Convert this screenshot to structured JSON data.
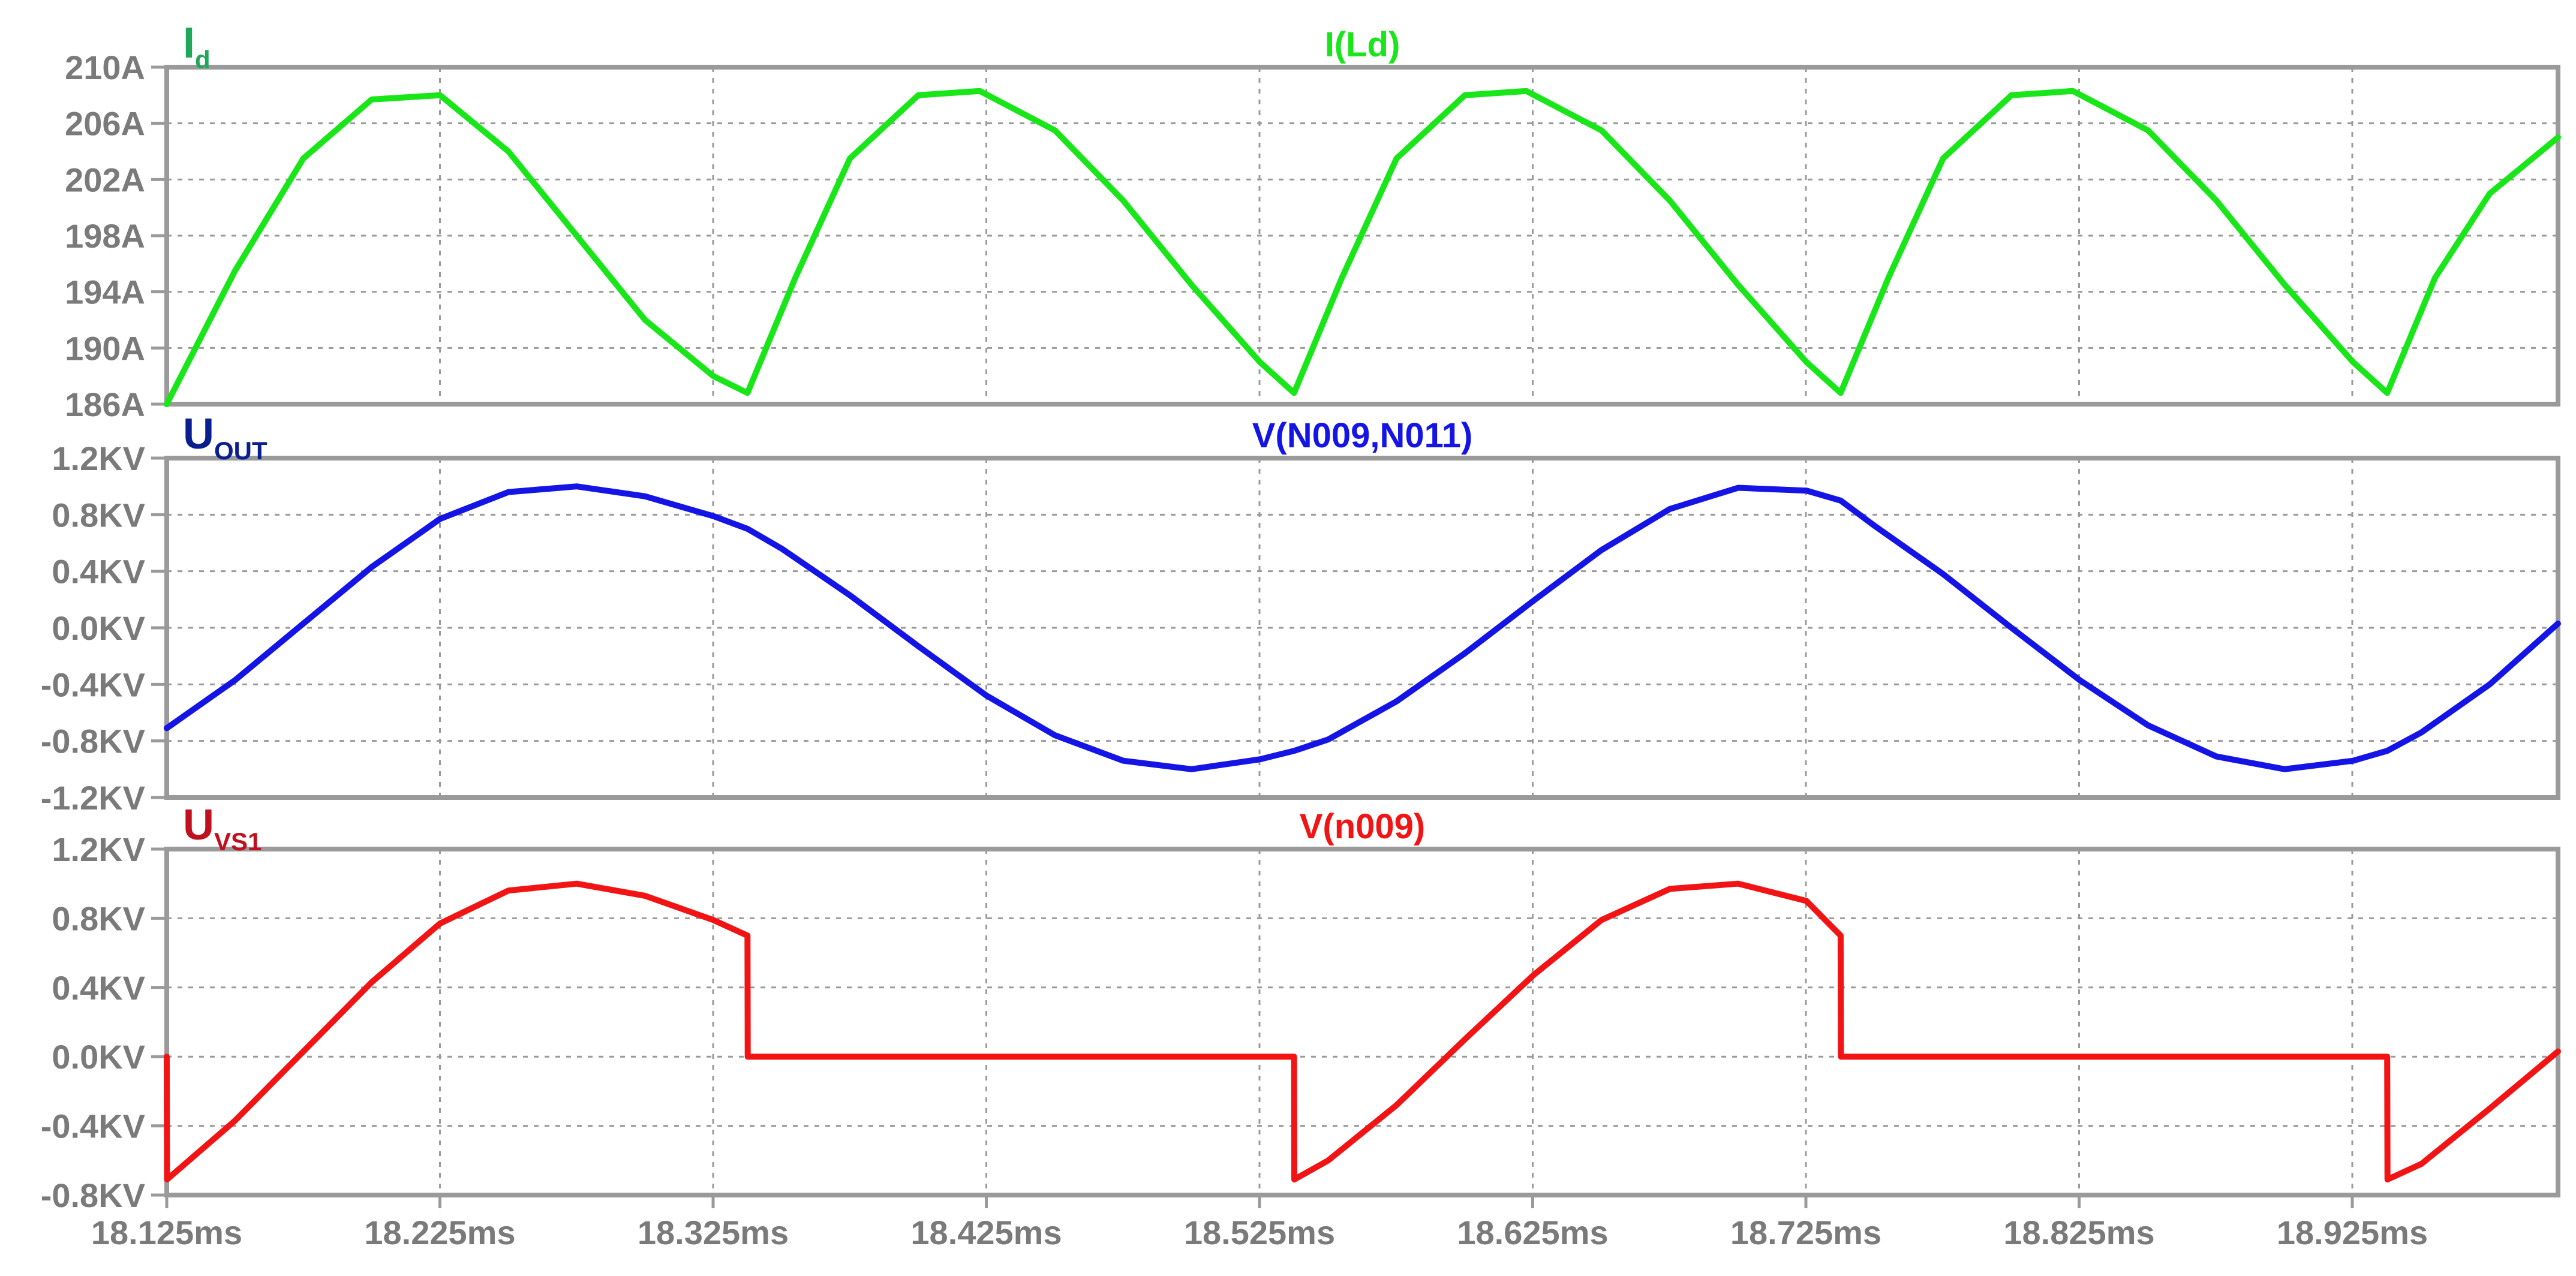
{
  "x_axis": {
    "tick_labels": [
      "18.125ms",
      "18.225ms",
      "18.325ms",
      "18.425ms",
      "18.525ms",
      "18.625ms",
      "18.725ms",
      "18.825ms",
      "18.925ms"
    ],
    "range_ms": [
      18.125,
      19.0
    ],
    "grid": true
  },
  "panes": [
    {
      "id": "id",
      "symbol": "I",
      "subscript": "d",
      "symbol_color": "#1fa85a",
      "trace_name": "I(Ld)",
      "trace_color": "#19e619",
      "y_tick_labels": [
        "210A",
        "206A",
        "202A",
        "198A",
        "194A",
        "190A",
        "186A"
      ]
    },
    {
      "id": "uout",
      "symbol": "U",
      "subscript": "OUT",
      "symbol_color": "#0a1f8f",
      "trace_name": "V(N009,N011)",
      "trace_color": "#1414e6",
      "y_tick_labels": [
        "1.2KV",
        "0.8KV",
        "0.4KV",
        "0.0KV",
        "-0.4KV",
        "-0.8KV",
        "-1.2KV"
      ]
    },
    {
      "id": "uvs1",
      "symbol": "U",
      "subscript": "VS1",
      "symbol_color": "#c0101e",
      "trace_name": "V(n009)",
      "trace_color": "#f21414",
      "y_tick_labels": [
        "1.2KV",
        "0.8KV",
        "0.4KV",
        "0.0KV",
        "-0.4KV",
        "-0.8KV"
      ]
    }
  ],
  "chart_data": [
    {
      "type": "line",
      "title": "I(Ld)",
      "ylabel": "Id",
      "xlabel": "",
      "unit": "A",
      "ylim": [
        186,
        210
      ],
      "xlim_ms": [
        18.125,
        19.0
      ],
      "grid": true,
      "series": [
        {
          "name": "I(Ld)",
          "color": "#19e619",
          "x_ms": [
            18.125,
            18.15,
            18.175,
            18.2,
            18.225,
            18.25,
            18.275,
            18.3,
            18.325,
            18.3375,
            18.355,
            18.375,
            18.4,
            18.4225,
            18.45,
            18.475,
            18.5,
            18.525,
            18.5375,
            18.555,
            18.575,
            18.6,
            18.6225,
            18.65,
            18.675,
            18.7,
            18.725,
            18.7375,
            18.755,
            18.775,
            18.8,
            18.8225,
            18.85,
            18.875,
            18.9,
            18.925,
            18.9375,
            18.955,
            18.975,
            19.0
          ],
          "y_A": [
            186.0,
            195.5,
            203.5,
            207.7,
            208.0,
            204.0,
            198.0,
            192.0,
            188.0,
            186.8,
            195.0,
            203.5,
            208.0,
            208.3,
            205.5,
            200.5,
            194.5,
            189.0,
            186.8,
            195.0,
            203.5,
            208.0,
            208.3,
            205.5,
            200.5,
            194.5,
            189.0,
            186.8,
            195.0,
            203.5,
            208.0,
            208.3,
            205.5,
            200.5,
            194.5,
            189.0,
            186.8,
            195.0,
            201.0,
            205.0
          ]
        }
      ]
    },
    {
      "type": "line",
      "title": "V(N009,N011)",
      "ylabel": "UOUT",
      "xlabel": "",
      "unit": "KV",
      "ylim": [
        -1.2,
        1.2
      ],
      "xlim_ms": [
        18.125,
        19.0
      ],
      "grid": true,
      "series": [
        {
          "name": "V(N009,N011)",
          "color": "#1414e6",
          "x_ms": [
            18.125,
            18.15,
            18.175,
            18.2,
            18.225,
            18.25,
            18.275,
            18.3,
            18.325,
            18.3375,
            18.35,
            18.375,
            18.4,
            18.425,
            18.45,
            18.475,
            18.5,
            18.525,
            18.5375,
            18.55,
            18.575,
            18.6,
            18.625,
            18.65,
            18.675,
            18.7,
            18.725,
            18.7375,
            18.75,
            18.775,
            18.8,
            18.825,
            18.85,
            18.875,
            18.9,
            18.925,
            18.9375,
            18.95,
            18.975,
            19.0
          ],
          "y_KV": [
            -0.71,
            -0.37,
            0.03,
            0.43,
            0.77,
            0.96,
            1.0,
            0.93,
            0.79,
            0.7,
            0.56,
            0.23,
            -0.13,
            -0.48,
            -0.76,
            -0.94,
            -1.0,
            -0.93,
            -0.87,
            -0.79,
            -0.52,
            -0.18,
            0.19,
            0.55,
            0.84,
            0.99,
            0.97,
            0.9,
            0.72,
            0.38,
            0.0,
            -0.37,
            -0.69,
            -0.91,
            -1.0,
            -0.94,
            -0.87,
            -0.74,
            -0.4,
            0.03
          ]
        }
      ]
    },
    {
      "type": "line",
      "title": "V(n009)",
      "ylabel": "UVS1",
      "xlabel": "",
      "unit": "KV",
      "ylim": [
        -0.8,
        1.2
      ],
      "xlim_ms": [
        18.125,
        19.0
      ],
      "grid": true,
      "series": [
        {
          "name": "V(n009)",
          "color": "#f21414",
          "x_ms": [
            18.125,
            18.1251,
            18.15,
            18.175,
            18.2,
            18.225,
            18.25,
            18.275,
            18.3,
            18.325,
            18.3375,
            18.3376,
            18.425,
            18.525,
            18.5375,
            18.5376,
            18.55,
            18.575,
            18.6,
            18.625,
            18.65,
            18.675,
            18.7,
            18.725,
            18.7375,
            18.7376,
            18.825,
            18.925,
            18.9375,
            18.9376,
            18.95,
            18.975,
            19.0
          ],
          "y_KV": [
            0.0,
            -0.71,
            -0.37,
            0.03,
            0.43,
            0.77,
            0.96,
            1.0,
            0.93,
            0.79,
            0.7,
            0.0,
            0.0,
            0.0,
            0.0,
            -0.71,
            -0.6,
            -0.28,
            0.1,
            0.47,
            0.79,
            0.97,
            1.0,
            0.9,
            0.7,
            0.0,
            0.0,
            0.0,
            0.0,
            -0.71,
            -0.62,
            -0.3,
            0.03
          ]
        }
      ]
    }
  ]
}
